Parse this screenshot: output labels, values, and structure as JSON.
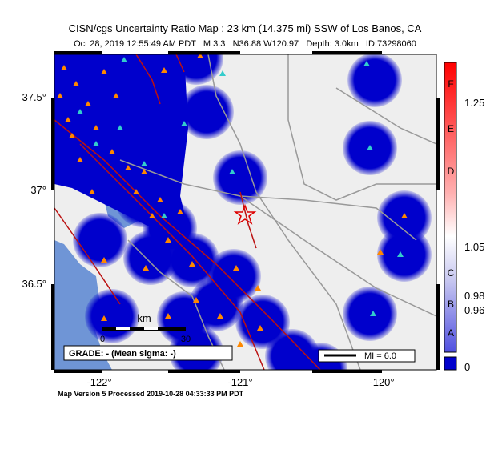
{
  "header": {
    "title": "CISN/cgs Uncertainty Ratio Map : 23 km (14.375 mi) SSW of Los Banos, CA",
    "subtitle": "Oct 28, 2019 12:55:49 AM PDT   M 3.3   N36.88 W120.97   Depth: 3.0km   ID:73298060"
  },
  "map": {
    "lat_labels": [
      "37.5°",
      "37°",
      "36.5°"
    ],
    "lon_labels": [
      "-122°",
      "-121°",
      "-120°"
    ]
  },
  "scale": {
    "unit": "km",
    "ticks": [
      "0",
      "30"
    ]
  },
  "grade": "GRADE: - (Mean sigma: -)",
  "mi_legend": "MI = 6.0",
  "colorbar": {
    "letters": [
      "F",
      "E",
      "D",
      "C",
      "B",
      "A"
    ],
    "values": [
      "1.25",
      "1.05",
      "0.98",
      "0.96",
      "0"
    ]
  },
  "footer": "Map Version 5 Processed 2019-10-28 04:33:33 PM PDT"
}
